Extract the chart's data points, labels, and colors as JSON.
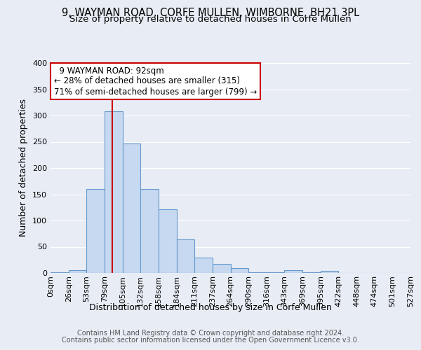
{
  "title_line1": "9, WAYMAN ROAD, CORFE MULLEN, WIMBORNE, BH21 3PL",
  "title_line2": "Size of property relative to detached houses in Corfe Mullen",
  "xlabel": "Distribution of detached houses by size in Corfe Mullen",
  "ylabel": "Number of detached properties",
  "footer_line1": "Contains HM Land Registry data © Crown copyright and database right 2024.",
  "footer_line2": "Contains public sector information licensed under the Open Government Licence v3.0.",
  "bin_labels": [
    "0sqm",
    "26sqm",
    "53sqm",
    "79sqm",
    "105sqm",
    "132sqm",
    "158sqm",
    "184sqm",
    "211sqm",
    "237sqm",
    "264sqm",
    "290sqm",
    "316sqm",
    "343sqm",
    "369sqm",
    "395sqm",
    "422sqm",
    "448sqm",
    "474sqm",
    "501sqm",
    "527sqm"
  ],
  "bar_values": [
    2,
    5,
    160,
    308,
    247,
    160,
    122,
    64,
    30,
    18,
    9,
    2,
    2,
    5,
    2,
    4,
    0,
    0,
    0,
    0
  ],
  "bar_color": "#c6d9f0",
  "bar_edge_color": "#6699cc",
  "property_label": "9 WAYMAN ROAD: 92sqm",
  "annotation_line1": "← 28% of detached houses are smaller (315)",
  "annotation_line2": "71% of semi-detached houses are larger (799) →",
  "vline_color": "#cc0000",
  "vline_x": 3.42,
  "annotation_box_color": "#ffffff",
  "annotation_box_edge": "#cc0000",
  "ylim": [
    0,
    400
  ],
  "yticks": [
    0,
    50,
    100,
    150,
    200,
    250,
    300,
    350,
    400
  ],
  "bg_color": "#e8edf5",
  "plot_bg_color": "#e8edf5",
  "grid_color": "#ffffff",
  "title_fontsize": 10.5,
  "subtitle_fontsize": 9.5,
  "axis_label_fontsize": 9,
  "tick_fontsize": 8,
  "footer_fontsize": 7,
  "annotation_fontsize": 8.5
}
